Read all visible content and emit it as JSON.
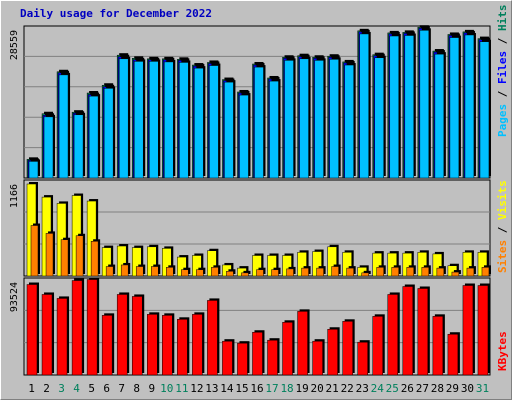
{
  "title": "Daily usage for December 2022",
  "colors": {
    "background": "#c0c0c0",
    "grid": "#808080",
    "hits": "#00805c",
    "files": "#0000ff",
    "pages": "#00c0ff",
    "visits": "#ffff00",
    "sites": "#ff8000",
    "kbytes": "#ff0000",
    "weekend_day_label": "#00805c",
    "weekday_label": "#000000"
  },
  "chart_data": [
    {
      "type": "bar",
      "panel": "hits-files-pages",
      "title": "Daily usage for December 2022",
      "ylabel_max": "28559",
      "right_labels": [
        "Pages",
        "Files",
        "Hits"
      ],
      "categories": [
        "1",
        "2",
        "3",
        "4",
        "5",
        "6",
        "7",
        "8",
        "9",
        "10",
        "11",
        "12",
        "13",
        "14",
        "15",
        "16",
        "17",
        "18",
        "19",
        "20",
        "21",
        "22",
        "23",
        "24",
        "25",
        "26",
        "27",
        "28",
        "29",
        "30",
        "31"
      ],
      "ymax": 28559,
      "series": [
        {
          "name": "Hits",
          "values": [
            3600,
            12400,
            20500,
            12700,
            16400,
            17900,
            23700,
            23100,
            23000,
            23000,
            22900,
            21800,
            22300,
            19000,
            16600,
            22000,
            19300,
            23300,
            23600,
            23300,
            23500,
            22400,
            28400,
            23800,
            28000,
            28100,
            29100,
            24500,
            27700,
            28200,
            26900
          ]
        },
        {
          "name": "Files",
          "values": [
            3400,
            12100,
            20300,
            12500,
            16100,
            17600,
            23400,
            22800,
            22800,
            22800,
            22700,
            21600,
            22100,
            18800,
            16400,
            21800,
            19100,
            23100,
            23400,
            23100,
            23300,
            22200,
            28200,
            23600,
            27800,
            27900,
            28900,
            24300,
            27500,
            28000,
            26700
          ]
        },
        {
          "name": "Pages",
          "values": [
            3200,
            11800,
            19900,
            12200,
            15800,
            17300,
            23000,
            22500,
            22500,
            22400,
            22300,
            21200,
            21700,
            18500,
            16000,
            21400,
            18700,
            22700,
            23000,
            22700,
            22900,
            21800,
            27800,
            23200,
            27400,
            27500,
            28500,
            23900,
            27100,
            27600,
            26300
          ]
        }
      ],
      "weekend_days": [
        "3",
        "4",
        "10",
        "11",
        "17",
        "18",
        "24",
        "25",
        "31"
      ]
    },
    {
      "type": "bar",
      "panel": "visits-sites",
      "ylabel_max": "1166",
      "right_labels": [
        "Sites",
        "Visits"
      ],
      "ymax": 1166,
      "series": [
        {
          "name": "Visits",
          "values": [
            1166,
            1000,
            920,
            1020,
            950,
            360,
            380,
            360,
            370,
            350,
            240,
            260,
            320,
            140,
            100,
            260,
            260,
            260,
            300,
            310,
            370,
            300,
            110,
            290,
            290,
            290,
            300,
            280,
            130,
            300,
            300
          ]
        },
        {
          "name": "Sites",
          "values": [
            640,
            540,
            460,
            510,
            440,
            120,
            140,
            120,
            120,
            110,
            80,
            80,
            110,
            60,
            40,
            80,
            80,
            90,
            100,
            100,
            120,
            100,
            40,
            110,
            110,
            110,
            110,
            100,
            50,
            100,
            110
          ]
        }
      ]
    },
    {
      "type": "bar",
      "panel": "kbytes",
      "ylabel_max": "93524",
      "right_labels": [
        "KBytes"
      ],
      "ymax": 93524,
      "series": [
        {
          "name": "KBytes",
          "values": [
            91000,
            81000,
            77000,
            95000,
            96000,
            60000,
            81000,
            79000,
            61000,
            60000,
            56000,
            61000,
            75000,
            34000,
            32000,
            43000,
            35000,
            53000,
            64000,
            34000,
            46000,
            54000,
            33000,
            59000,
            81000,
            89000,
            87000,
            59000,
            41000,
            90000,
            90000
          ]
        }
      ]
    }
  ]
}
